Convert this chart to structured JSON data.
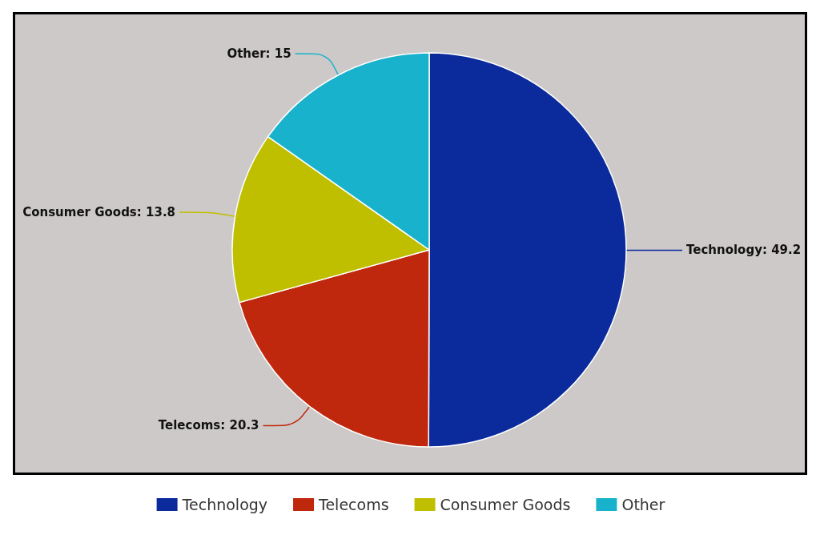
{
  "chart_data": {
    "type": "pie",
    "categories": [
      "Technology",
      "Telecoms",
      "Consumer Goods",
      "Other"
    ],
    "values": [
      49.2,
      20.3,
      13.8,
      15
    ],
    "colors": [
      "#0b2a9c",
      "#c0280e",
      "#bfbf00",
      "#19b2cc"
    ],
    "value_labels": [
      "Technology: 49.2",
      "Telecoms: 20.3",
      "Consumer Goods: 13.8",
      "Other: 15"
    ],
    "legend": "bottom"
  }
}
